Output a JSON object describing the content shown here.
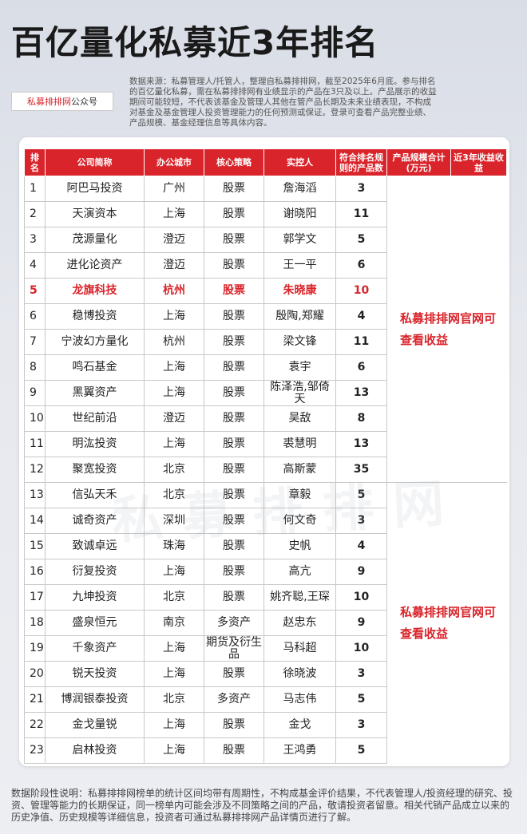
{
  "header": {
    "title": "百亿量化私募近3年排名",
    "source_brand": "私募排排网",
    "source_suffix": "公众号",
    "description": "数据来源：私募管理人/托管人，整理自私募排排网，截至2025年6月底。参与排名的百亿量化私募，需在私募排排网有业绩显示的产品在3只及以上。产品展示的收益期间可能较短，不代表该基金及管理人其他在管产品长期及未来业绩表现，不构成对基金及基金管理人投资管理能力的任何预测或保证。登录可查看产品完整业绩、产品规模、基金经理信息等具体内容。"
  },
  "watermark": "私募排排网",
  "table": {
    "columns": [
      "排名",
      "公司简称",
      "办公城市",
      "核心策略",
      "实控人",
      "符合排名规则的产品数",
      "产品规模合计(万元)",
      "近3年收益收益"
    ],
    "perf_notes": [
      "私募排排网官网可查看收益",
      "私募排排网官网可查看收益"
    ],
    "rows": [
      {
        "rank": "1",
        "company": "阿巴马投资",
        "city": "广州",
        "strategy": "股票",
        "controller": "詹海滔",
        "count": "3"
      },
      {
        "rank": "2",
        "company": "天演资本",
        "city": "上海",
        "strategy": "股票",
        "controller": "谢晓阳",
        "count": "11"
      },
      {
        "rank": "3",
        "company": "茂源量化",
        "city": "澄迈",
        "strategy": "股票",
        "controller": "郭学文",
        "count": "5"
      },
      {
        "rank": "4",
        "company": "进化论资产",
        "city": "澄迈",
        "strategy": "股票",
        "controller": "王一平",
        "count": "6"
      },
      {
        "rank": "5",
        "company": "龙旗科技",
        "city": "杭州",
        "strategy": "股票",
        "controller": "朱晓康",
        "count": "10"
      },
      {
        "rank": "6",
        "company": "稳博投资",
        "city": "上海",
        "strategy": "股票",
        "controller": "殷陶,郑耀",
        "count": "4"
      },
      {
        "rank": "7",
        "company": "宁波幻方量化",
        "city": "杭州",
        "strategy": "股票",
        "controller": "梁文锋",
        "count": "11"
      },
      {
        "rank": "8",
        "company": "鸣石基金",
        "city": "上海",
        "strategy": "股票",
        "controller": "袁宇",
        "count": "6"
      },
      {
        "rank": "9",
        "company": "黑翼资产",
        "city": "上海",
        "strategy": "股票",
        "controller": "陈泽浩,邹倚天",
        "count": "13"
      },
      {
        "rank": "10",
        "company": "世纪前沿",
        "city": "澄迈",
        "strategy": "股票",
        "controller": "吴敌",
        "count": "8"
      },
      {
        "rank": "11",
        "company": "明汯投资",
        "city": "上海",
        "strategy": "股票",
        "controller": "裘慧明",
        "count": "13"
      },
      {
        "rank": "12",
        "company": "聚宽投资",
        "city": "北京",
        "strategy": "股票",
        "controller": "高斯蒙",
        "count": "35"
      },
      {
        "rank": "13",
        "company": "信弘天禾",
        "city": "北京",
        "strategy": "股票",
        "controller": "章毅",
        "count": "5"
      },
      {
        "rank": "14",
        "company": "诚奇资产",
        "city": "深圳",
        "strategy": "股票",
        "controller": "何文奇",
        "count": "3"
      },
      {
        "rank": "15",
        "company": "致诚卓远",
        "city": "珠海",
        "strategy": "股票",
        "controller": "史帆",
        "count": "4"
      },
      {
        "rank": "16",
        "company": "衍复投资",
        "city": "上海",
        "strategy": "股票",
        "controller": "高亢",
        "count": "9"
      },
      {
        "rank": "17",
        "company": "九坤投资",
        "city": "北京",
        "strategy": "股票",
        "controller": "姚齐聪,王琛",
        "count": "10"
      },
      {
        "rank": "18",
        "company": "盛泉恒元",
        "city": "南京",
        "strategy": "多资产",
        "controller": "赵忠东",
        "count": "9"
      },
      {
        "rank": "19",
        "company": "千象资产",
        "city": "上海",
        "strategy": "期货及衍生品",
        "controller": "马科超",
        "count": "10"
      },
      {
        "rank": "20",
        "company": "锐天投资",
        "city": "上海",
        "strategy": "股票",
        "controller": "徐晓波",
        "count": "3"
      },
      {
        "rank": "21",
        "company": "博润银泰投资",
        "city": "北京",
        "strategy": "多资产",
        "controller": "马志伟",
        "count": "5"
      },
      {
        "rank": "22",
        "company": "金戈量锐",
        "city": "上海",
        "strategy": "股票",
        "controller": "金戈",
        "count": "3"
      },
      {
        "rank": "23",
        "company": "启林投资",
        "city": "上海",
        "strategy": "股票",
        "controller": "王鸿勇",
        "count": "5"
      }
    ]
  },
  "footer": {
    "note": "数据阶段性说明：私募排排网榜单的统计区间均带有周期性，不构成基金评价结果，不代表管理人/投资经理的研究、投资、管理等能力的长期保证，同一榜单内可能会涉及不同策略之间的产品，敬请投资者留意。相关代销产品成立以来的历史净值、历史规模等详细信息，投资者可通过私募排排网产品详情页进行了解。"
  },
  "colors": {
    "accent": "#d9242b",
    "highlight_row": "#d9242b"
  }
}
